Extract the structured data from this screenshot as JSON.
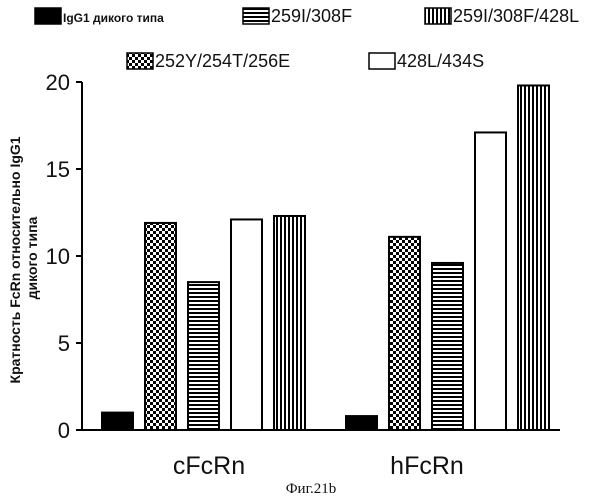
{
  "chart_data": {
    "type": "bar",
    "categories": [
      "cFcRn",
      "hFcRn"
    ],
    "series": [
      {
        "name": "IgG1 дикого типа",
        "values": [
          1.0,
          0.8
        ],
        "pattern": "solid"
      },
      {
        "name": "252Y/254T/256E",
        "values": [
          11.9,
          11.1
        ],
        "pattern": "checker"
      },
      {
        "name": "259I/308F",
        "values": [
          8.5,
          9.6
        ],
        "pattern": "hstripe"
      },
      {
        "name": "428L/434S",
        "values": [
          12.1,
          17.1
        ],
        "pattern": "white"
      },
      {
        "name": "259I/308F/428L",
        "values": [
          12.3,
          19.8
        ],
        "pattern": "vstripe"
      }
    ],
    "ylabel_lines": [
      "Кратность FcRn относительно IgG1",
      "дикого типа"
    ],
    "ylim": [
      0,
      20
    ],
    "yticks": [
      "0",
      "5",
      "10",
      "15",
      "20"
    ],
    "grid": false,
    "legend_position": "top",
    "caption": "Фиг.21b",
    "colors": {
      "bar_fill": "#000000",
      "background": "#ffffff"
    }
  }
}
